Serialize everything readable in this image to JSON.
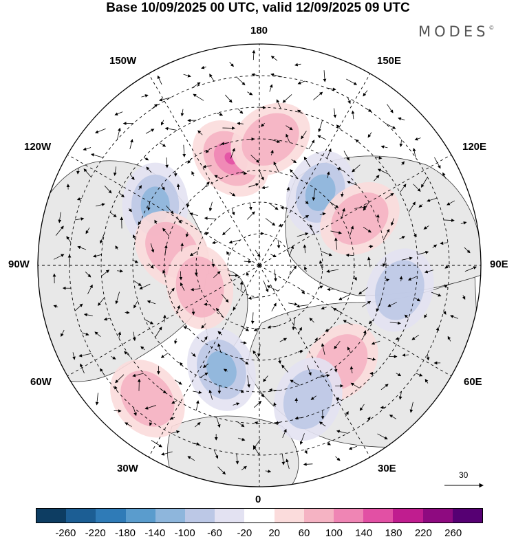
{
  "header": {
    "title": "Base 10/09/2025 00 UTC, valid 12/09/2025 09 UTC",
    "brand": "MODES",
    "brand_mark": "©"
  },
  "map": {
    "projection": "north-polar-stereographic",
    "meridian_labels": {
      "top": "180",
      "bottom": "0",
      "left": "90W",
      "right": "90E",
      "upper_left_1": "150W",
      "upper_left_2": "120W",
      "upper_right_1": "150E",
      "upper_right_2": "120E",
      "lower_left_1": "60W",
      "lower_left_2": "30W",
      "lower_right_1": "60E",
      "lower_right_2": "30E"
    },
    "reference_vector": {
      "label": "30"
    },
    "colors": {
      "land": "#e8e8e8",
      "ocean": "#ffffff",
      "grid": "#000000"
    }
  },
  "colorbar": {
    "tick_labels": [
      "-260",
      "-220",
      "-180",
      "-140",
      "-100",
      "-60",
      "-20",
      "20",
      "60",
      "100",
      "140",
      "180",
      "220",
      "260"
    ],
    "colors": [
      "#0d3d62",
      "#1c5e94",
      "#2f7bb7",
      "#5a9ccd",
      "#8eb6dc",
      "#bcc8e6",
      "#e3e2f2",
      "#ffffff",
      "#fbdcdc",
      "#f5b3c3",
      "#ef85b4",
      "#e250a4",
      "#c01d8f",
      "#8e0a80",
      "#560073"
    ]
  },
  "anomaly_centres": [
    {
      "sign": "pos",
      "strength": 3,
      "lon": -165,
      "lat": 55
    },
    {
      "sign": "neg",
      "strength": 2,
      "lon": -120,
      "lat": 52
    },
    {
      "sign": "neg",
      "strength": 2,
      "lon": 140,
      "lat": 60
    },
    {
      "sign": "pos",
      "strength": 1,
      "lon": 115,
      "lat": 55
    },
    {
      "sign": "neg",
      "strength": 2,
      "lon": -20,
      "lat": 55
    },
    {
      "sign": "pos",
      "strength": 1,
      "lon": 175,
      "lat": 50
    },
    {
      "sign": "pos",
      "strength": 1,
      "lon": -100,
      "lat": 62
    },
    {
      "sign": "pos",
      "strength": 1,
      "lon": 40,
      "lat": 50
    },
    {
      "sign": "neg",
      "strength": 1,
      "lon": 80,
      "lat": 45
    },
    {
      "sign": "pos",
      "strength": 1,
      "lon": -40,
      "lat": 35
    },
    {
      "sign": "neg",
      "strength": 1,
      "lon": 20,
      "lat": 45
    },
    {
      "sign": "pos",
      "strength": 1,
      "lon": -70,
      "lat": 70
    }
  ]
}
